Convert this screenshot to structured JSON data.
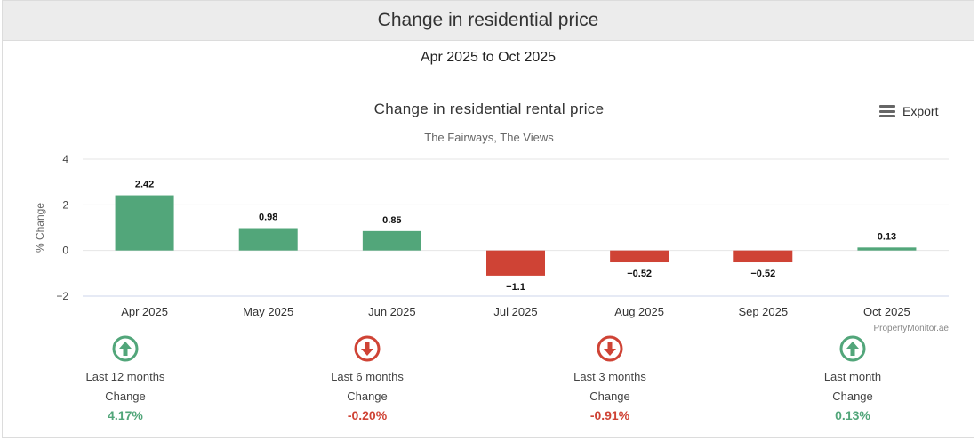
{
  "header": {
    "title": "Change in residential price"
  },
  "date_range": "Apr 2025 to Oct 2025",
  "export": {
    "label": "Export"
  },
  "colors": {
    "positive": "#52a67a",
    "negative": "#cf4335",
    "grid": "#e6e6e6"
  },
  "chart_data": {
    "type": "bar",
    "title": "Change in residential rental price",
    "subtitle": "The Fairways, The Views",
    "xlabel": "",
    "ylabel": "% Change",
    "ylim": [
      -2,
      4
    ],
    "yticks": [
      4,
      2,
      0,
      -2
    ],
    "ytick_labels": [
      "4",
      "2",
      "0",
      "−2"
    ],
    "categories": [
      "Apr 2025",
      "May 2025",
      "Jun 2025",
      "Jul 2025",
      "Aug 2025",
      "Sep 2025",
      "Oct 2025"
    ],
    "values": [
      2.42,
      0.98,
      0.85,
      -1.1,
      -0.52,
      -0.52,
      0.13
    ],
    "data_labels": [
      "2.42",
      "0.98",
      "0.85",
      "−1.1",
      "−0.52",
      "−0.52",
      "0.13"
    ],
    "credit": "PropertyMonitor.ae",
    "grid": true
  },
  "stats": [
    {
      "label": "Last 12 months",
      "sub": "Change",
      "value": "4.17%",
      "direction": "up",
      "icon": "arrow-up-circle-icon"
    },
    {
      "label": "Last 6 months",
      "sub": "Change",
      "value": "-0.20%",
      "direction": "down",
      "icon": "arrow-down-circle-icon"
    },
    {
      "label": "Last 3 months",
      "sub": "Change",
      "value": "-0.91%",
      "direction": "down",
      "icon": "arrow-down-circle-icon"
    },
    {
      "label": "Last month",
      "sub": "Change",
      "value": "0.13%",
      "direction": "up",
      "icon": "arrow-up-circle-icon"
    }
  ]
}
